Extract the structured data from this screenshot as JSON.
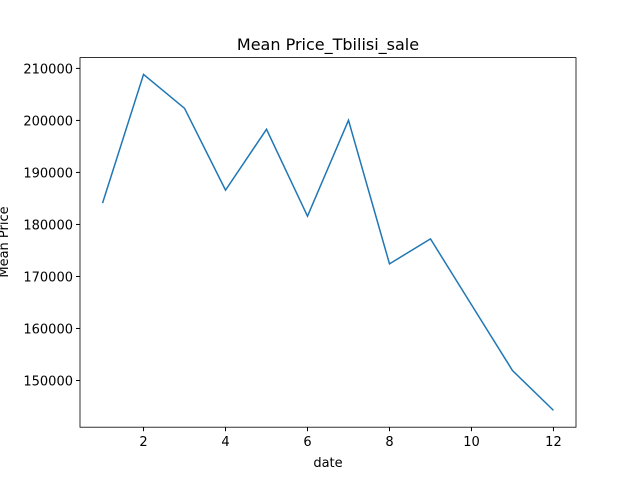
{
  "chart_data": {
    "type": "line",
    "title": "Mean Price_Tbilisi_sale",
    "xlabel": "date",
    "ylabel": "Mean Price",
    "x": [
      1,
      2,
      3,
      4,
      5,
      6,
      7,
      8,
      9,
      10,
      11,
      12
    ],
    "series": [
      {
        "name": "Mean Price",
        "color": "#1f77b4",
        "values": [
          184100,
          208850,
          202330,
          186600,
          198300,
          181600,
          200030,
          172430,
          177220,
          164570,
          151920,
          144250
        ]
      }
    ],
    "xlim": [
      0.45,
      12.55
    ],
    "xticks": [
      2,
      4,
      6,
      8,
      10,
      12
    ],
    "ylim": [
      141020,
      212080
    ],
    "yticks": [
      150000,
      160000,
      170000,
      180000,
      190000,
      200000,
      210000
    ],
    "grid": false
  }
}
